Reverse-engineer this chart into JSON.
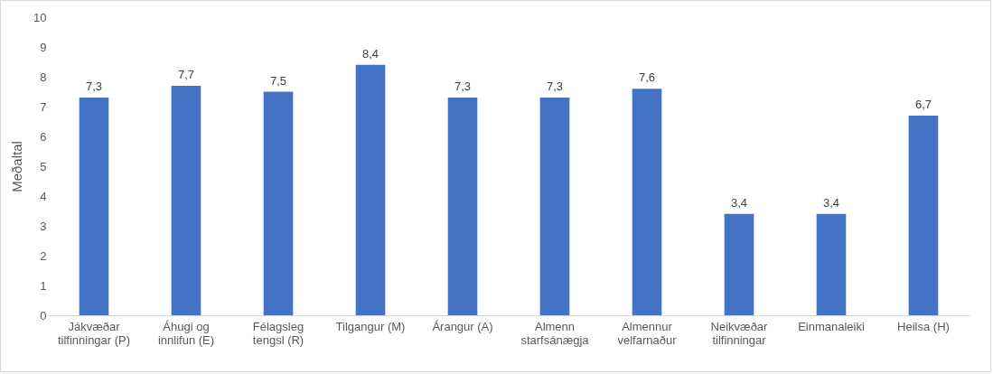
{
  "chart_data": {
    "type": "bar",
    "ylabel": "Meðaltal",
    "categories": [
      "Jákvæðar tilfinningar (P)",
      "Áhugi og innlifun (E)",
      "Félagsleg tengsl (R)",
      "Tilgangur (M)",
      "Árangur (A)",
      "Almenn starfsánægja",
      "Almennur velfarnaður",
      "Neikvæðar tilfinningar",
      "Einmanaleiki",
      "Heilsa (H)"
    ],
    "values": [
      7.3,
      7.7,
      7.5,
      8.4,
      7.3,
      7.3,
      7.6,
      3.4,
      3.4,
      6.7
    ],
    "value_labels": [
      "7,3",
      "7,7",
      "7,5",
      "8,4",
      "7,3",
      "7,3",
      "7,6",
      "3,4",
      "3,4",
      "6,7"
    ],
    "color": "#4472c4",
    "ylim": [
      0,
      10
    ],
    "yticks": [
      0,
      1,
      2,
      3,
      4,
      5,
      6,
      7,
      8,
      9,
      10
    ],
    "grid": false
  }
}
